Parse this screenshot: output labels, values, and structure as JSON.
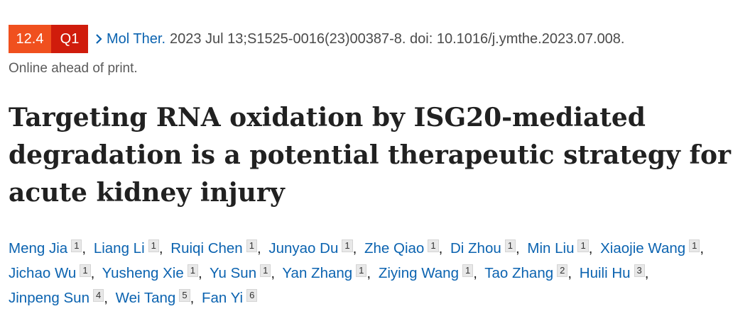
{
  "header": {
    "impact_factor": "12.4",
    "quartile": "Q1",
    "journal": "Mol Ther.",
    "citation": "2023 Jul 13;S1525-0016(23)00387-8. doi: 10.1016/j.ymthe.2023.07.008.",
    "status": "Online ahead of print."
  },
  "title": "Targeting RNA oxidation by ISG20-mediated degradation is a potential therapeutic strategy for acute kidney injury",
  "author_separator": ",",
  "authors": [
    {
      "name": "Meng Jia",
      "affiliation": "1"
    },
    {
      "name": "Liang Li",
      "affiliation": "1"
    },
    {
      "name": "Ruiqi Chen",
      "affiliation": "1"
    },
    {
      "name": "Junyao Du",
      "affiliation": "1"
    },
    {
      "name": "Zhe Qiao",
      "affiliation": "1"
    },
    {
      "name": "Di Zhou",
      "affiliation": "1"
    },
    {
      "name": "Min Liu",
      "affiliation": "1"
    },
    {
      "name": "Xiaojie Wang",
      "affiliation": "1"
    },
    {
      "name": "Jichao Wu",
      "affiliation": "1"
    },
    {
      "name": "Yusheng Xie",
      "affiliation": "1"
    },
    {
      "name": "Yu Sun",
      "affiliation": "1"
    },
    {
      "name": "Yan Zhang",
      "affiliation": "1"
    },
    {
      "name": "Ziying Wang",
      "affiliation": "1"
    },
    {
      "name": "Tao Zhang",
      "affiliation": "2"
    },
    {
      "name": "Huili Hu",
      "affiliation": "3"
    },
    {
      "name": "Jinpeng Sun",
      "affiliation": "4"
    },
    {
      "name": "Wei Tang",
      "affiliation": "5"
    },
    {
      "name": "Fan Yi",
      "affiliation": "6"
    }
  ]
}
